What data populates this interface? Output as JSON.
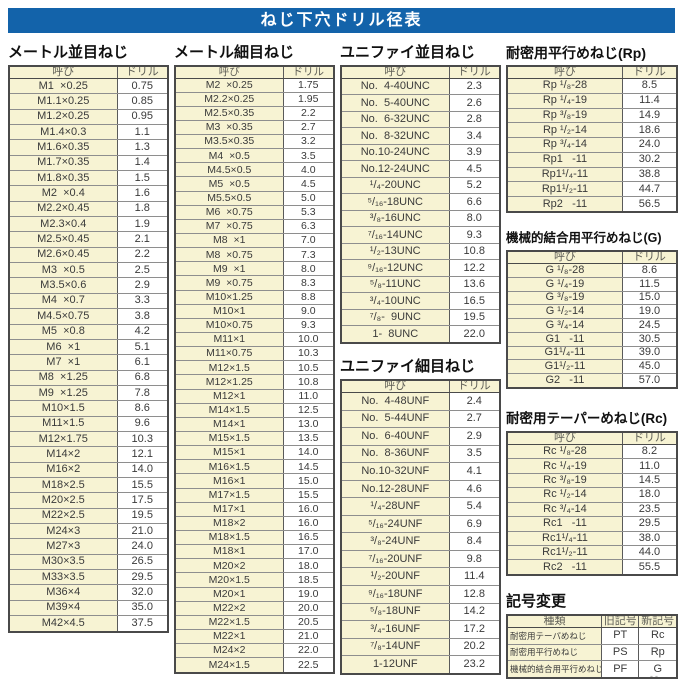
{
  "title": "ねじ下穴ドリル径表",
  "col_headers": [
    "呼び",
    "ドリル"
  ],
  "corner_mark": "--",
  "sections": {
    "metric_coarse": {
      "heading": "メートル並目ねじ",
      "rows": [
        [
          "M1  ×0.25",
          "0.75"
        ],
        [
          "M1.1×0.25",
          "0.85"
        ],
        [
          "M1.2×0.25",
          "0.95"
        ],
        [
          "M1.4×0.3",
          "1.1"
        ],
        [
          "M1.6×0.35",
          "1.3"
        ],
        [
          "M1.7×0.35",
          "1.4"
        ],
        [
          "M1.8×0.35",
          "1.5"
        ],
        [
          "M2  ×0.4",
          "1.6"
        ],
        [
          "M2.2×0.45",
          "1.8"
        ],
        [
          "M2.3×0.4",
          "1.9"
        ],
        [
          "M2.5×0.45",
          "2.1"
        ],
        [
          "M2.6×0.45",
          "2.2"
        ],
        [
          "M3  ×0.5",
          "2.5"
        ],
        [
          "M3.5×0.6",
          "2.9"
        ],
        [
          "M4  ×0.7",
          "3.3"
        ],
        [
          "M4.5×0.75",
          "3.8"
        ],
        [
          "M5  ×0.8",
          "4.2"
        ],
        [
          "M6  ×1",
          "5.1"
        ],
        [
          "M7  ×1",
          "6.1"
        ],
        [
          "M8  ×1.25",
          "6.8"
        ],
        [
          "M9  ×1.25",
          "7.8"
        ],
        [
          "M10×1.5",
          "8.6"
        ],
        [
          "M11×1.5",
          "9.6"
        ],
        [
          "M12×1.75",
          "10.3"
        ],
        [
          "M14×2",
          "12.1"
        ],
        [
          "M16×2",
          "14.0"
        ],
        [
          "M18×2.5",
          "15.5"
        ],
        [
          "M20×2.5",
          "17.5"
        ],
        [
          "M22×2.5",
          "19.5"
        ],
        [
          "M24×3",
          "21.0"
        ],
        [
          "M27×3",
          "24.0"
        ],
        [
          "M30×3.5",
          "26.5"
        ],
        [
          "M33×3.5",
          "29.5"
        ],
        [
          "M36×4",
          "32.0"
        ],
        [
          "M39×4",
          "35.0"
        ],
        [
          "M42×4.5",
          "37.5"
        ]
      ]
    },
    "metric_fine": {
      "heading": "メートル細目ねじ",
      "rows": [
        [
          "M2  ×0.25",
          "1.75"
        ],
        [
          "M2.2×0.25",
          "1.95"
        ],
        [
          "M2.5×0.35",
          "2.2"
        ],
        [
          "M3  ×0.35",
          "2.7"
        ],
        [
          "M3.5×0.35",
          "3.2"
        ],
        [
          "M4  ×0.5",
          "3.5"
        ],
        [
          "M4.5×0.5",
          "4.0"
        ],
        [
          "M5  ×0.5",
          "4.5"
        ],
        [
          "M5.5×0.5",
          "5.0"
        ],
        [
          "M6  ×0.75",
          "5.3"
        ],
        [
          "M7  ×0.75",
          "6.3"
        ],
        [
          "M8  ×1",
          "7.0"
        ],
        [
          "M8  ×0.75",
          "7.3"
        ],
        [
          "M9  ×1",
          "8.0"
        ],
        [
          "M9  ×0.75",
          "8.3"
        ],
        [
          "M10×1.25",
          "8.8"
        ],
        [
          "M10×1",
          "9.0"
        ],
        [
          "M10×0.75",
          "9.3"
        ],
        [
          "M11×1",
          "10.0"
        ],
        [
          "M11×0.75",
          "10.3"
        ],
        [
          "M12×1.5",
          "10.5"
        ],
        [
          "M12×1.25",
          "10.8"
        ],
        [
          "M12×1",
          "11.0"
        ],
        [
          "M14×1.5",
          "12.5"
        ],
        [
          "M14×1",
          "13.0"
        ],
        [
          "M15×1.5",
          "13.5"
        ],
        [
          "M15×1",
          "14.0"
        ],
        [
          "M16×1.5",
          "14.5"
        ],
        [
          "M16×1",
          "15.0"
        ],
        [
          "M17×1.5",
          "15.5"
        ],
        [
          "M17×1",
          "16.0"
        ],
        [
          "M18×2",
          "16.0"
        ],
        [
          "M18×1.5",
          "16.5"
        ],
        [
          "M18×1",
          "17.0"
        ],
        [
          "M20×2",
          "18.0"
        ],
        [
          "M20×1.5",
          "18.5"
        ],
        [
          "M20×1",
          "19.0"
        ],
        [
          "M22×2",
          "20.0"
        ],
        [
          "M22×1.5",
          "20.5"
        ],
        [
          "M22×1",
          "21.0"
        ],
        [
          "M24×2",
          "22.0"
        ],
        [
          "M24×1.5",
          "22.5"
        ]
      ]
    },
    "unified_coarse": {
      "heading": "ユニファイ並目ねじ",
      "rows": [
        [
          "No.  4-40UNC",
          "2.3"
        ],
        [
          "No.  5-40UNC",
          "2.6"
        ],
        [
          "No.  6-32UNC",
          "2.8"
        ],
        [
          "No.  8-32UNC",
          "3.4"
        ],
        [
          "No.10-24UNC",
          "3.9"
        ],
        [
          "No.12-24UNC",
          "4.5"
        ],
        [
          "¹/₄-20UNC",
          "5.2"
        ],
        [
          "⁵/₁₆-18UNC",
          "6.6"
        ],
        [
          "³/₈-16UNC",
          "8.0"
        ],
        [
          "⁷/₁₆-14UNC",
          "9.3"
        ],
        [
          "¹/₂-13UNC",
          "10.8"
        ],
        [
          "⁹/₁₆-12UNC",
          "12.2"
        ],
        [
          "⁵/₈-11UNC",
          "13.6"
        ],
        [
          "³/₄-10UNC",
          "16.5"
        ],
        [
          "⁷/₈-  9UNC",
          "19.5"
        ],
        [
          "1-  8UNC",
          "22.0"
        ]
      ]
    },
    "unified_fine": {
      "heading": "ユニファイ細目ねじ",
      "rows": [
        [
          "No.  4-48UNF",
          "2.4"
        ],
        [
          "No.  5-44UNF",
          "2.7"
        ],
        [
          "No.  6-40UNF",
          "2.9"
        ],
        [
          "No.  8-36UNF",
          "3.5"
        ],
        [
          "No.10-32UNF",
          "4.1"
        ],
        [
          "No.12-28UNF",
          "4.6"
        ],
        [
          "¹/₄-28UNF",
          "5.4"
        ],
        [
          "⁵/₁₆-24UNF",
          "6.9"
        ],
        [
          "³/₈-24UNF",
          "8.4"
        ],
        [
          "⁷/₁₆-20UNF",
          "9.8"
        ],
        [
          "¹/₂-20UNF",
          "11.4"
        ],
        [
          "⁹/₁₆-18UNF",
          "12.8"
        ],
        [
          "⁵/₈-18UNF",
          "14.2"
        ],
        [
          "³/₄-16UNF",
          "17.2"
        ],
        [
          "⁷/₈-14UNF",
          "20.2"
        ],
        [
          "1-12UNF",
          "23.2"
        ]
      ]
    },
    "rp": {
      "heading": "耐密用平行めねじ(Rp)",
      "rows": [
        [
          "Rp ¹/₈-28",
          "8.5"
        ],
        [
          "Rp ¹/₄-19",
          "11.4"
        ],
        [
          "Rp ³/₈-19",
          "14.9"
        ],
        [
          "Rp ¹/₂-14",
          "18.6"
        ],
        [
          "Rp ³/₄-14",
          "24.0"
        ],
        [
          "Rp1   -11",
          "30.2"
        ],
        [
          "Rp1¹/₄-11",
          "38.8"
        ],
        [
          "Rp1¹/₂-11",
          "44.7"
        ],
        [
          "Rp2   -11",
          "56.5"
        ]
      ]
    },
    "g": {
      "heading": "機械的結合用平行めねじ(G)",
      "rows": [
        [
          "G ¹/₈-28",
          "8.6"
        ],
        [
          "G ¹/₄-19",
          "11.5"
        ],
        [
          "G ³/₈-19",
          "15.0"
        ],
        [
          "G ¹/₂-14",
          "19.0"
        ],
        [
          "G ³/₄-14",
          "24.5"
        ],
        [
          "G1   -11",
          "30.5"
        ],
        [
          "G1¹/₄-11",
          "39.0"
        ],
        [
          "G1¹/₂-11",
          "45.0"
        ],
        [
          "G2   -11",
          "57.0"
        ]
      ]
    },
    "rc": {
      "heading": "耐密用テーパーめねじ(Rc)",
      "rows": [
        [
          "Rc ¹/₈-28",
          "8.2"
        ],
        [
          "Rc ¹/₄-19",
          "11.0"
        ],
        [
          "Rc ³/₈-19",
          "14.5"
        ],
        [
          "Rc ¹/₂-14",
          "18.0"
        ],
        [
          "Rc ³/₄-14",
          "23.5"
        ],
        [
          "Rc1   -11",
          "29.5"
        ],
        [
          "Rc1¹/₄-11",
          "38.0"
        ],
        [
          "Rc1¹/₂-11",
          "44.0"
        ],
        [
          "Rc2   -11",
          "55.5"
        ]
      ]
    },
    "symbol_change": {
      "heading": "記号変更",
      "headers": [
        "種類",
        "旧記号",
        "新記号"
      ],
      "rows": [
        [
          "耐密用テーパめねじ",
          "PT",
          "Rc"
        ],
        [
          "耐密用平行めねじ",
          "PS",
          "Rp"
        ],
        [
          "機械的結合用平行めねじ",
          "PF",
          "G"
        ]
      ]
    }
  }
}
